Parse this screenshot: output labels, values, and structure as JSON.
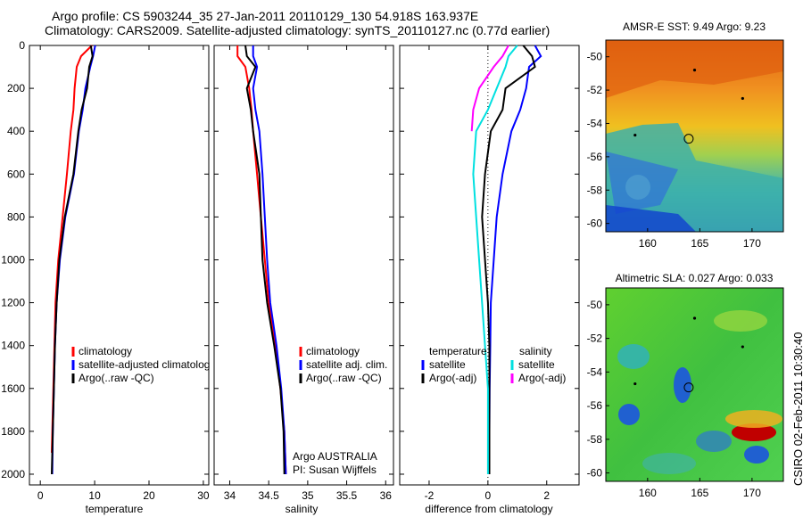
{
  "page": {
    "title_line1": "Argo profile: CS 5903244_35 27-Jan-2011 20110129_130 54.918S 163.937E",
    "title_line2": "Climatology: CARS2009. Satellite-adjusted climatology: synTS_20110127.nc (0.77d earlier)",
    "stamp": "CSIRO 02-Feb-2011 10:30:40"
  },
  "colors": {
    "climatology": "#ff0000",
    "satellite": "#0000ff",
    "argo": "#000000",
    "sat_diff_salinity": "#00e0e0",
    "argo_diff_salinity": "#ff00ff"
  },
  "chart_data": [
    {
      "type": "line",
      "name": "temperature-profile",
      "xlabel": "temperature",
      "ylabel": "",
      "xlim": [
        -2,
        31
      ],
      "ylim": [
        2050,
        0
      ],
      "xticks": [
        0,
        10,
        20,
        30
      ],
      "yticks": [
        0,
        200,
        400,
        600,
        800,
        1000,
        1200,
        1400,
        1600,
        1800,
        2000
      ],
      "legend": [
        "climatology",
        "satellite-adjusted climatolog",
        "Argo(..raw -QC)"
      ],
      "series": [
        {
          "name": "climatology",
          "color": "#ff0000",
          "x": [
            9.5,
            7.5,
            6.7,
            6.3,
            6.1,
            5.6,
            4.9,
            4.1,
            3.3,
            2.8,
            2.6,
            2.4,
            2.2,
            2.1
          ],
          "y": [
            0,
            50,
            100,
            200,
            300,
            400,
            600,
            800,
            1000,
            1200,
            1400,
            1600,
            1800,
            1900
          ]
        },
        {
          "name": "satellite-adjusted climatolog",
          "color": "#0000ff",
          "x": [
            10.1,
            9.7,
            9.2,
            8.3,
            7.8,
            7.1,
            6.2,
            4.6,
            3.6,
            3.0,
            2.7,
            2.5,
            2.3,
            2.2
          ],
          "y": [
            0,
            50,
            100,
            200,
            300,
            400,
            600,
            800,
            1000,
            1200,
            1400,
            1600,
            1800,
            2000
          ]
        },
        {
          "name": "Argo(..raw -QC)",
          "color": "#000000",
          "x": [
            9.3,
            9.6,
            9.0,
            8.6,
            7.6,
            7.0,
            6.1,
            4.5,
            3.5,
            3.0,
            2.7,
            2.5,
            2.3,
            2.1
          ],
          "y": [
            0,
            50,
            100,
            200,
            300,
            400,
            600,
            800,
            1000,
            1200,
            1400,
            1600,
            1800,
            2000
          ]
        }
      ]
    },
    {
      "type": "line",
      "name": "salinity-profile",
      "xlabel": "salinity",
      "xlim": [
        33.8,
        36.1
      ],
      "ylim": [
        2050,
        0
      ],
      "xticks": [
        34,
        34.5,
        35,
        35.5,
        36
      ],
      "legend": [
        "climatology",
        "satellite adj. clim.",
        "Argo(..raw -QC)"
      ],
      "annotation": [
        "Argo AUSTRALIA",
        "PI: Susan Wijffels"
      ],
      "series": [
        {
          "name": "climatology",
          "color": "#ff0000",
          "x": [
            34.1,
            34.1,
            34.2,
            34.25,
            34.28,
            34.3,
            34.35,
            34.4,
            34.45,
            34.5,
            34.58,
            34.65,
            34.7,
            34.72
          ],
          "y": [
            0,
            50,
            100,
            200,
            300,
            400,
            600,
            800,
            1000,
            1200,
            1400,
            1600,
            1800,
            2000
          ]
        },
        {
          "name": "satellite adj. clim.",
          "color": "#0000ff",
          "x": [
            34.3,
            34.3,
            34.35,
            34.3,
            34.33,
            34.38,
            34.42,
            34.45,
            34.48,
            34.52,
            34.6,
            34.66,
            34.7,
            34.72
          ],
          "y": [
            0,
            50,
            100,
            200,
            300,
            400,
            600,
            800,
            1000,
            1200,
            1400,
            1600,
            1800,
            2000
          ]
        },
        {
          "name": "Argo(..raw -QC)",
          "color": "#000000",
          "x": [
            34.2,
            34.22,
            34.33,
            34.22,
            34.27,
            34.3,
            34.38,
            34.4,
            34.42,
            34.48,
            34.57,
            34.65,
            34.69,
            34.7
          ],
          "y": [
            0,
            50,
            100,
            200,
            300,
            400,
            600,
            800,
            1000,
            1200,
            1400,
            1600,
            1800,
            2000
          ]
        }
      ]
    },
    {
      "type": "line",
      "name": "difference-profile",
      "xlabel": "difference from climatology",
      "xlim": [
        -3,
        3.1
      ],
      "ylim": [
        2050,
        0
      ],
      "xticks": [
        -2,
        0,
        2
      ],
      "zero_line": 0,
      "legend_headers": [
        "temperature",
        "salinity"
      ],
      "legend": [
        [
          "satellite",
          "Argo(-adj)"
        ],
        [
          "satellite",
          "Argo(-adj)"
        ]
      ],
      "series": [
        {
          "name": "temperature satellite",
          "color": "#0000ff",
          "x": [
            1.6,
            1.8,
            1.4,
            1.3,
            1.1,
            0.8,
            0.5,
            0.3,
            0.2,
            0.1,
            0.08,
            0.06,
            0.05,
            0.05
          ],
          "y": [
            0,
            50,
            100,
            200,
            300,
            400,
            600,
            800,
            1000,
            1200,
            1400,
            1600,
            1800,
            2000
          ]
        },
        {
          "name": "temperature Argo(-adj)",
          "color": "#000000",
          "x": [
            1.2,
            1.5,
            1.6,
            0.6,
            0.5,
            0.1,
            -0.1,
            -0.2,
            -0.1,
            0.0,
            0.05,
            0.05,
            0.05,
            0.05
          ],
          "y": [
            0,
            50,
            100,
            200,
            300,
            400,
            600,
            800,
            1000,
            1200,
            1400,
            1600,
            1800,
            2000
          ]
        },
        {
          "name": "salinity satellite",
          "color": "#00e0e0",
          "x": [
            1.0,
            0.7,
            0.6,
            0.3,
            0.0,
            -0.4,
            -0.5,
            -0.4,
            -0.3,
            -0.2,
            -0.1,
            0.0,
            0.0,
            0.0
          ],
          "y": [
            0,
            50,
            100,
            200,
            300,
            400,
            600,
            800,
            1000,
            1200,
            1400,
            1600,
            1800,
            2000
          ]
        },
        {
          "name": "salinity Argo(-adj)",
          "color": "#ff00ff",
          "x": [
            0.7,
            0.5,
            0.2,
            -0.3,
            -0.5,
            -0.55
          ],
          "y": [
            0,
            50,
            100,
            200,
            300,
            400
          ]
        }
      ]
    },
    {
      "type": "heatmap",
      "name": "sst-map",
      "title": "AMSR-E SST: 9.49 Argo: 9.23",
      "xlim": [
        156,
        173
      ],
      "ylim": [
        -60.5,
        -49
      ],
      "xticks": [
        160,
        165,
        170
      ],
      "yticks": [
        -50,
        -52,
        -54,
        -56,
        -58,
        -60
      ],
      "marker": {
        "lon": 163.937,
        "lat": -54.918
      }
    },
    {
      "type": "heatmap",
      "name": "sla-map",
      "title": "Altimetric SLA: 0.027 Argo: 0.033",
      "xlim": [
        156,
        173
      ],
      "ylim": [
        -60.5,
        -49
      ],
      "xticks": [
        160,
        165,
        170
      ],
      "yticks": [
        -50,
        -52,
        -54,
        -56,
        -58,
        -60
      ],
      "marker": {
        "lon": 163.937,
        "lat": -54.918
      }
    }
  ]
}
